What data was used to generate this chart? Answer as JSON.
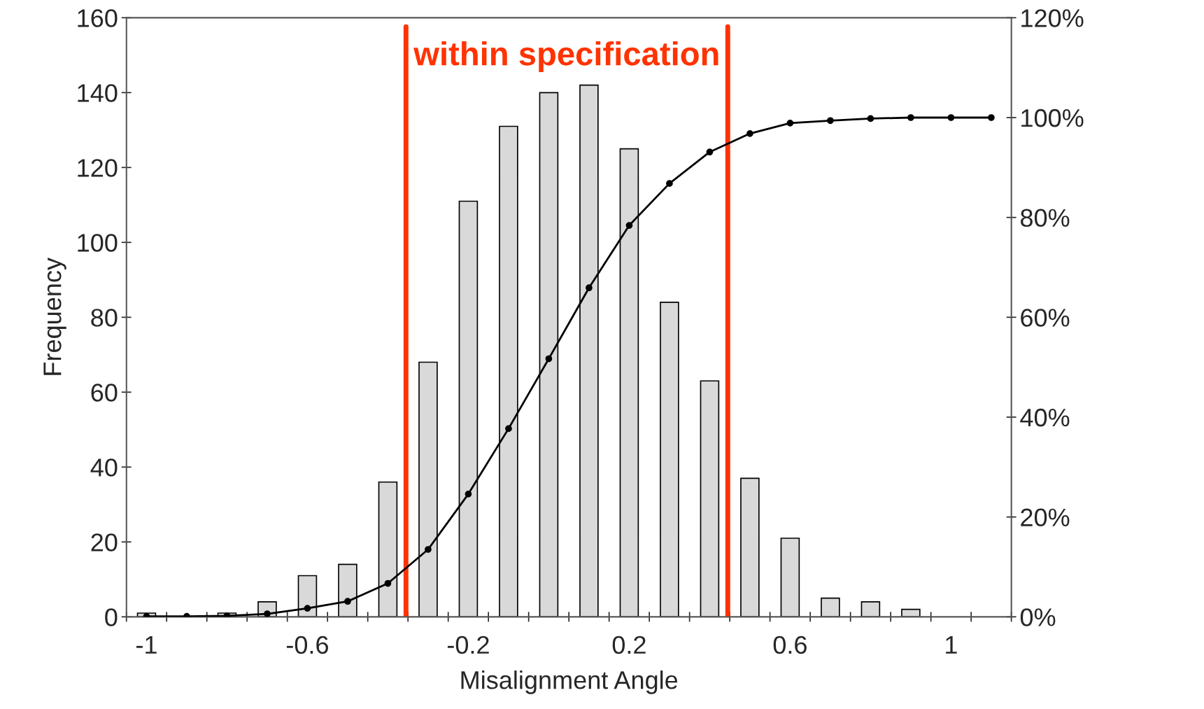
{
  "chart_data": {
    "type": "bar",
    "xlabel": "Misalignment Angle",
    "ylabel": "Frequency",
    "series": [
      {
        "color": "#d9d9d9",
        "x": [
          -1,
          -0.9,
          -0.8,
          -0.7,
          -0.6,
          -0.5,
          -0.4,
          -0.3,
          -0.2,
          -0.1,
          0,
          0.1,
          0.2,
          0.3,
          0.4,
          0.5,
          0.6,
          0.7,
          0.8,
          0.9
        ],
        "values": [
          1,
          0,
          1,
          4,
          11,
          14,
          36,
          68,
          111,
          131,
          140,
          142,
          125,
          84,
          63,
          37,
          21,
          5,
          4,
          2
        ]
      },
      {
        "type": "line",
        "axis": "y2",
        "color": "#000000",
        "marker": "circle",
        "x": [
          -1,
          -0.9,
          -0.8,
          -0.7,
          -0.6,
          -0.5,
          -0.4,
          -0.3,
          -0.2,
          -0.1,
          0,
          0.1,
          0.2,
          0.3,
          0.4,
          0.5,
          0.6,
          0.7,
          0.8,
          0.9,
          1,
          1.1
        ],
        "values": [
          0.1,
          0.1,
          0.2,
          0.6,
          1.7,
          3.1,
          6.7,
          13.5,
          24.6,
          37.7,
          51.7,
          65.9,
          78.4,
          86.8,
          93.1,
          96.8,
          98.9,
          99.4,
          99.8,
          100,
          100,
          100
        ]
      }
    ],
    "xlim": [
      -1.05,
      1.15
    ],
    "xticks": [
      {
        "value": -1,
        "label": "-1"
      },
      {
        "value": -0.6,
        "label": "-0.6"
      },
      {
        "value": -0.2,
        "label": "-0.2"
      },
      {
        "value": 0.2,
        "label": "0.2"
      },
      {
        "value": 0.6,
        "label": "0.6"
      },
      {
        "value": 1,
        "label": "1"
      },
      {
        "value": -1.05,
        "label": null
      },
      {
        "value": -0.95,
        "label": null
      },
      {
        "value": -0.85,
        "label": null
      },
      {
        "value": -0.75,
        "label": null
      },
      {
        "value": -0.65,
        "label": null
      },
      {
        "value": -0.55,
        "label": null
      },
      {
        "value": -0.45,
        "label": null
      },
      {
        "value": -0.35,
        "label": null
      },
      {
        "value": -0.25,
        "label": null
      },
      {
        "value": -0.15,
        "label": null
      },
      {
        "value": -0.05,
        "label": null
      },
      {
        "value": 0.05,
        "label": null
      },
      {
        "value": 0.15,
        "label": null
      },
      {
        "value": 0.25,
        "label": null
      },
      {
        "value": 0.35,
        "label": null
      },
      {
        "value": 0.45,
        "label": null
      },
      {
        "value": 0.55,
        "label": null
      },
      {
        "value": 0.65,
        "label": null
      },
      {
        "value": 0.75,
        "label": null
      },
      {
        "value": 0.85,
        "label": null
      },
      {
        "value": 0.95,
        "label": null
      },
      {
        "value": 1.05,
        "label": null
      },
      {
        "value": 1.15,
        "label": null
      }
    ],
    "ylim": [
      0,
      160
    ],
    "yticks": [
      0,
      20,
      40,
      60,
      80,
      100,
      120,
      140,
      160
    ],
    "y2lim": [
      0,
      120
    ],
    "y2ticks": [
      {
        "value": 0,
        "label": "0%"
      },
      {
        "value": 20,
        "label": "20%"
      },
      {
        "value": 40,
        "label": "40%"
      },
      {
        "value": 60,
        "label": "60%"
      },
      {
        "value": 80,
        "label": "80%"
      },
      {
        "value": 100,
        "label": "100%"
      },
      {
        "value": 120,
        "label": "120%"
      }
    ],
    "ref_lines": [
      {
        "axis": "x",
        "value": -0.355,
        "color": "#ff3300"
      },
      {
        "axis": "x",
        "value": 0.445,
        "color": "#ff3300"
      }
    ],
    "annotations": [
      "within specification"
    ],
    "grid": false,
    "legend": false
  }
}
